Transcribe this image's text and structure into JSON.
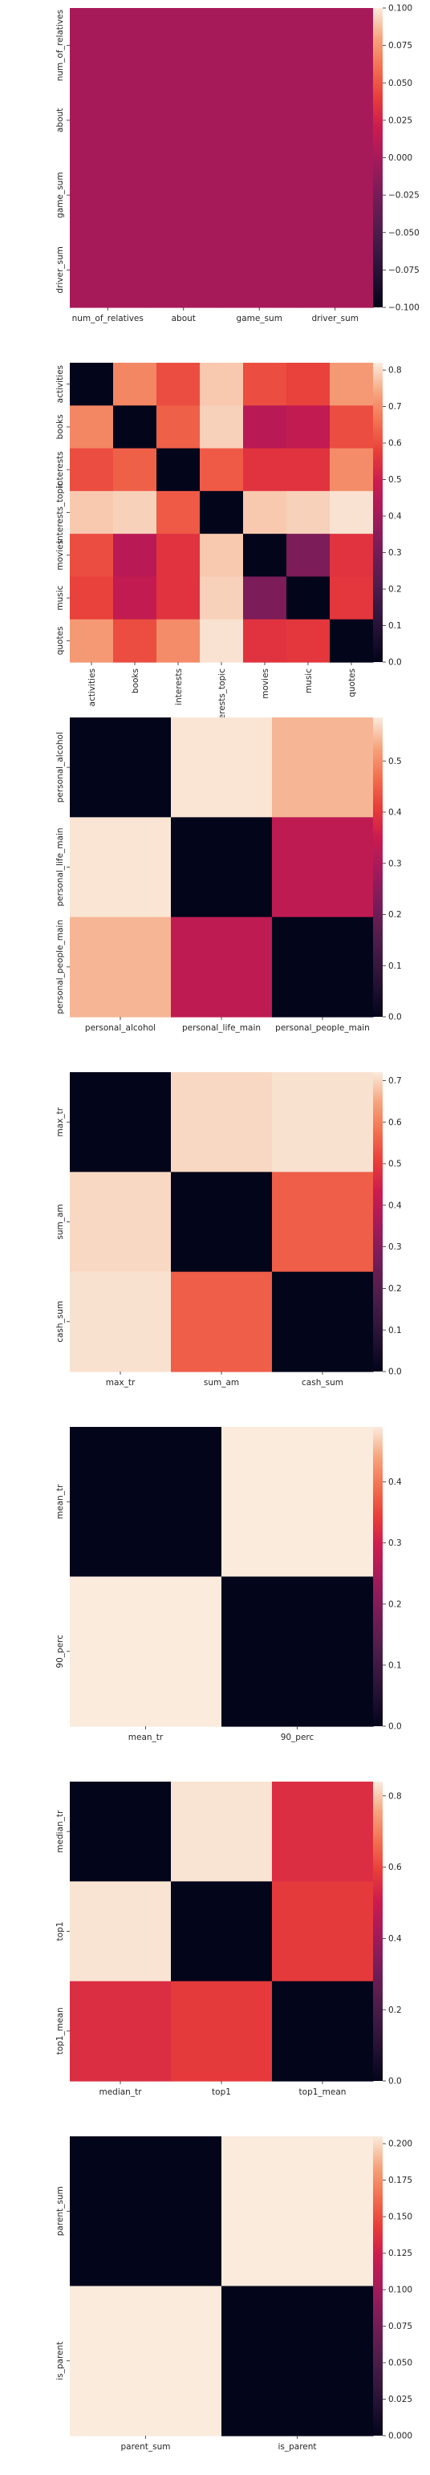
{
  "palette": "rocket",
  "chart_data": [
    {
      "type": "heatmap",
      "rows": [
        "num_of_relatives",
        "about",
        "game_sum",
        "driver_sum"
      ],
      "cols": [
        "num_of_relatives",
        "about",
        "game_sum",
        "driver_sum"
      ],
      "values": [
        [
          0,
          0,
          0,
          0
        ],
        [
          0,
          0,
          0,
          0
        ],
        [
          0,
          0,
          0,
          0
        ],
        [
          0,
          0,
          0,
          0
        ]
      ],
      "vmin": -0.1,
      "vmax": 0.1,
      "colorbar_ticks": [
        "0.100",
        "0.075",
        "0.050",
        "0.025",
        "0.000",
        "−0.025",
        "−0.050",
        "−0.075",
        "−0.100"
      ],
      "colorbar_tick_values": [
        0.1,
        0.075,
        0.05,
        0.025,
        0.0,
        -0.025,
        -0.05,
        -0.075,
        -0.1
      ]
    },
    {
      "type": "heatmap",
      "rows": [
        "activities",
        "books",
        "interests",
        "interests_topic",
        "movies",
        "music",
        "quotes"
      ],
      "cols": [
        "activities",
        "books",
        "interests",
        "interests_topic",
        "movies",
        "music",
        "quotes"
      ],
      "values": [
        [
          0.0,
          0.69,
          0.6,
          0.78,
          0.6,
          0.58,
          0.72
        ],
        [
          0.69,
          0.0,
          0.63,
          0.79,
          0.45,
          0.47,
          0.6
        ],
        [
          0.6,
          0.63,
          0.0,
          0.62,
          0.55,
          0.55,
          0.7
        ],
        [
          0.78,
          0.79,
          0.62,
          0.0,
          0.78,
          0.79,
          0.81
        ],
        [
          0.6,
          0.45,
          0.55,
          0.78,
          0.0,
          0.32,
          0.55
        ],
        [
          0.58,
          0.47,
          0.55,
          0.79,
          0.32,
          0.0,
          0.56
        ],
        [
          0.72,
          0.6,
          0.7,
          0.81,
          0.55,
          0.56,
          0.0
        ]
      ],
      "vmin": 0.0,
      "vmax": 0.82,
      "colorbar_ticks": [
        "0.8",
        "0.7",
        "0.6",
        "0.5",
        "0.4",
        "0.3",
        "0.2",
        "0.1",
        "0.0"
      ],
      "colorbar_tick_values": [
        0.8,
        0.7,
        0.6,
        0.5,
        0.4,
        0.3,
        0.2,
        0.1,
        0.0
      ]
    },
    {
      "type": "heatmap",
      "rows": [
        "personal_alcohol",
        "personal_life_main",
        "personal_people_main"
      ],
      "cols": [
        "personal_alcohol",
        "personal_life_main",
        "personal_people_main"
      ],
      "values": [
        [
          0.0,
          0.58,
          0.54
        ],
        [
          0.58,
          0.0,
          0.33
        ],
        [
          0.54,
          0.33,
          0.0
        ]
      ],
      "vmin": 0.0,
      "vmax": 0.585,
      "colorbar_ticks": [
        "0.5",
        "0.4",
        "0.3",
        "0.2",
        "0.1",
        "0.0"
      ],
      "colorbar_tick_values": [
        0.5,
        0.4,
        0.3,
        0.2,
        0.1,
        0.0
      ]
    },
    {
      "type": "heatmap",
      "rows": [
        "max_tr",
        "sum_am",
        "cash_sum"
      ],
      "cols": [
        "max_tr",
        "sum_am",
        "cash_sum"
      ],
      "values": [
        [
          0.0,
          0.7,
          0.71
        ],
        [
          0.7,
          0.0,
          0.55
        ],
        [
          0.71,
          0.55,
          0.0
        ]
      ],
      "vmin": 0.0,
      "vmax": 0.72,
      "colorbar_ticks": [
        "0.7",
        "0.6",
        "0.5",
        "0.4",
        "0.3",
        "0.2",
        "0.1",
        "0.0"
      ],
      "colorbar_tick_values": [
        0.7,
        0.6,
        0.5,
        0.4,
        0.3,
        0.2,
        0.1,
        0.0
      ]
    },
    {
      "type": "heatmap",
      "rows": [
        "mean_tr",
        "90_perc"
      ],
      "cols": [
        "mean_tr",
        "90_perc"
      ],
      "values": [
        [
          0.0,
          0.49
        ],
        [
          0.49,
          0.0
        ]
      ],
      "vmin": 0.0,
      "vmax": 0.49,
      "colorbar_ticks": [
        "0.4",
        "0.3",
        "0.2",
        "0.1",
        "0.0"
      ],
      "colorbar_tick_values": [
        0.4,
        0.3,
        0.2,
        0.1,
        0.0
      ]
    },
    {
      "type": "heatmap",
      "rows": [
        "median_tr",
        "top1",
        "top1_mean"
      ],
      "cols": [
        "median_tr",
        "top1",
        "top1_mean"
      ],
      "values": [
        [
          0.0,
          0.83,
          0.55
        ],
        [
          0.83,
          0.0,
          0.58
        ],
        [
          0.55,
          0.58,
          0.0
        ]
      ],
      "vmin": 0.0,
      "vmax": 0.84,
      "colorbar_ticks": [
        "0.8",
        "0.6",
        "0.4",
        "0.2",
        "0.0"
      ],
      "colorbar_tick_values": [
        0.8,
        0.6,
        0.4,
        0.2,
        0.0
      ]
    },
    {
      "type": "heatmap",
      "rows": [
        "parent_sum",
        "is_parent"
      ],
      "cols": [
        "parent_sum",
        "is_parent"
      ],
      "values": [
        [
          0.0,
          0.205
        ],
        [
          0.205,
          0.0
        ]
      ],
      "vmin": 0.0,
      "vmax": 0.205,
      "colorbar_ticks": [
        "0.200",
        "0.175",
        "0.150",
        "0.125",
        "0.100",
        "0.075",
        "0.050",
        "0.025",
        "0.000"
      ],
      "colorbar_tick_values": [
        0.2,
        0.175,
        0.15,
        0.125,
        0.1,
        0.075,
        0.05,
        0.025,
        0.0
      ]
    }
  ]
}
